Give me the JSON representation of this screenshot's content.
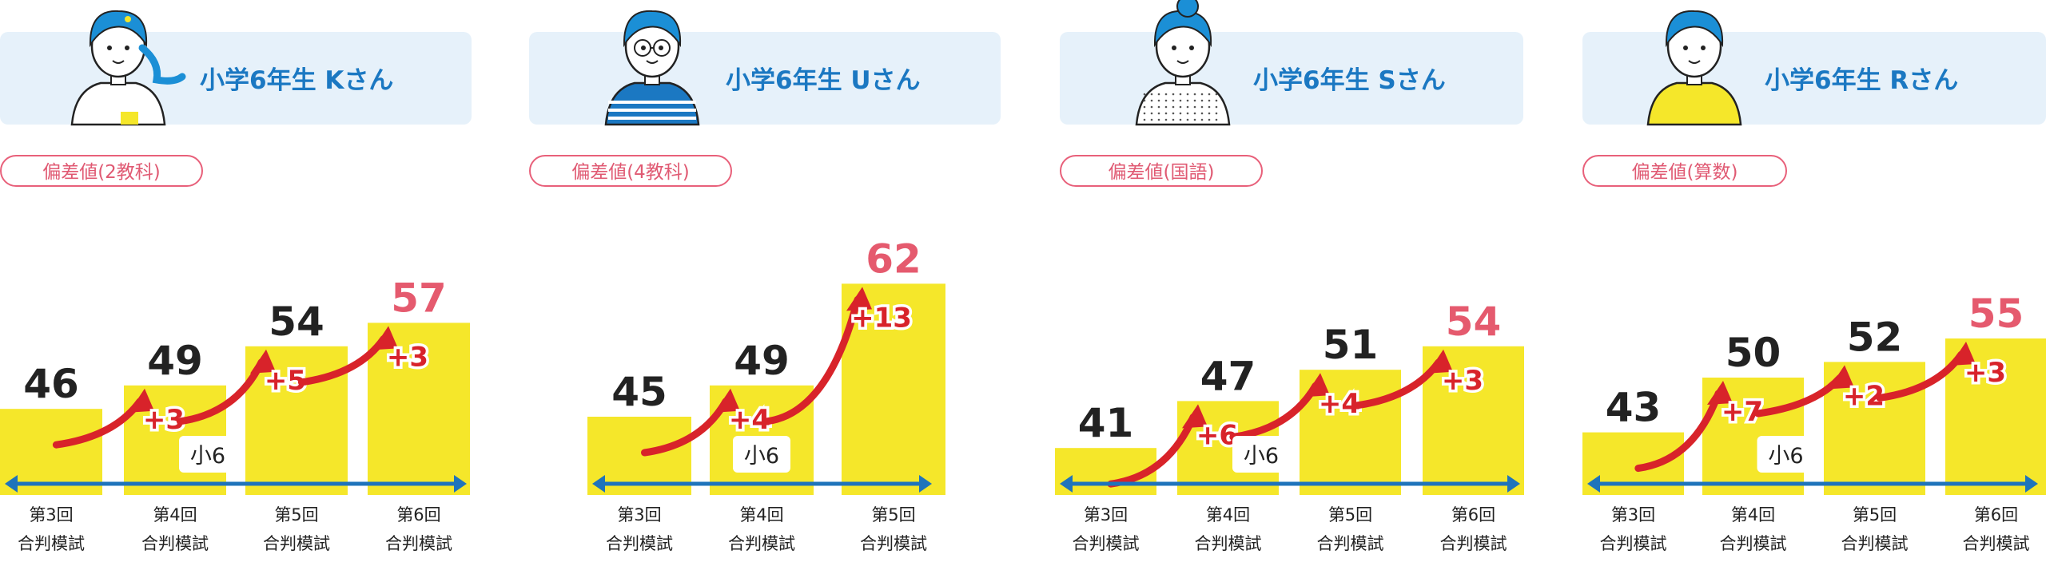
{
  "colors": {
    "bar": "#f5e72a",
    "accent_blue": "#1b78c2",
    "header_bg": "#e6f1fa",
    "highlight": "#e55a6e",
    "arrow_red": "#d8232a",
    "axis_blue": "#1f74bb"
  },
  "chart_data": [
    {
      "type": "bar",
      "student": "小学6年生 Kさん",
      "metric": "偏差値(2教科)",
      "grade_label": "小6",
      "categories": [
        [
          "第3回",
          "合判模試"
        ],
        [
          "第4回",
          "合判模試"
        ],
        [
          "第5回",
          "合判模試"
        ],
        [
          "第6回",
          "合判模試"
        ]
      ],
      "values": [
        46,
        49,
        54,
        57
      ],
      "gains": [
        "+3",
        "+5",
        "+3"
      ],
      "highlight_last": true,
      "avatar": "girl-ponytail-icon"
    },
    {
      "type": "bar",
      "student": "小学6年生 Uさん",
      "metric": "偏差値(4教科)",
      "grade_label": "小6",
      "categories": [
        [
          "第3回",
          "合判模試"
        ],
        [
          "第4回",
          "合判模試"
        ],
        [
          "第5回",
          "合判模試"
        ]
      ],
      "values": [
        45,
        49,
        62
      ],
      "gains": [
        "+4",
        "+13"
      ],
      "highlight_last": true,
      "avatar": "boy-glasses-icon"
    },
    {
      "type": "bar",
      "student": "小学6年生 Sさん",
      "metric": "偏差値(国語)",
      "grade_label": "小6",
      "categories": [
        [
          "第3回",
          "合判模試"
        ],
        [
          "第4回",
          "合判模試"
        ],
        [
          "第5回",
          "合判模試"
        ],
        [
          "第6回",
          "合判模試"
        ]
      ],
      "values": [
        41,
        47,
        51,
        54
      ],
      "gains": [
        "+6",
        "+4",
        "+3"
      ],
      "highlight_last": true,
      "avatar": "girl-bun-icon"
    },
    {
      "type": "bar",
      "student": "小学6年生 Rさん",
      "metric": "偏差値(算数)",
      "grade_label": "小6",
      "categories": [
        [
          "第3回",
          "合判模試"
        ],
        [
          "第4回",
          "合判模試"
        ],
        [
          "第5回",
          "合判模試"
        ],
        [
          "第6回",
          "合判模試"
        ]
      ],
      "values": [
        43,
        50,
        52,
        55
      ],
      "gains": [
        "+7",
        "+2",
        "+3"
      ],
      "highlight_last": true,
      "avatar": "boy-yellow-shirt-icon"
    }
  ]
}
